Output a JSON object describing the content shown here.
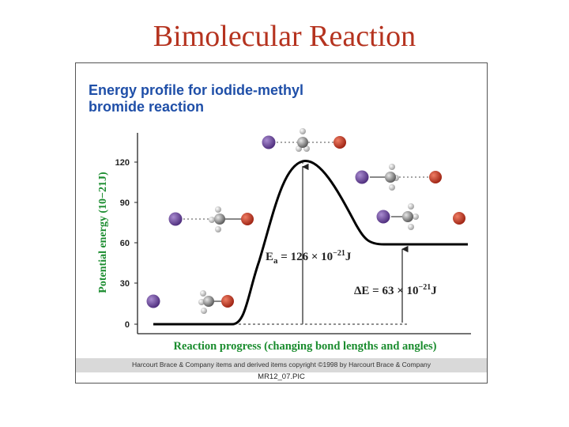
{
  "slide": {
    "title": "Bimolecular Reaction"
  },
  "figure": {
    "title_line1": "Energy profile for iodide-methyl",
    "title_line2": "bromide reaction",
    "credit": "Harcourt Brace & Company items and derived items copyright ©1998 by Harcourt Brace & Company",
    "file_label": "MR12_07.PIC"
  },
  "axes": {
    "ylabel": "Potential energy (10−21J)",
    "xlabel": "Reaction progress (changing bond lengths and angles)",
    "yticks": [
      "0",
      "30",
      "60",
      "90",
      "120"
    ]
  },
  "annotations": {
    "ea": {
      "sym": "E",
      "sub": "a",
      "eq": " = 126 × 10",
      "exp": "−21",
      "unit": "J"
    },
    "de": {
      "sym": "ΔE",
      "eq": " = 63 × 10",
      "exp": "−21",
      "unit": "J"
    }
  },
  "colors": {
    "iodine": "#6a3d9a",
    "bromine": "#c0392b",
    "carbon": "#888888",
    "hydrogen": "#d0d0d0",
    "curve": "#000000",
    "title": "#1f4fa8",
    "axis_label": "#1a8c2e"
  }
}
